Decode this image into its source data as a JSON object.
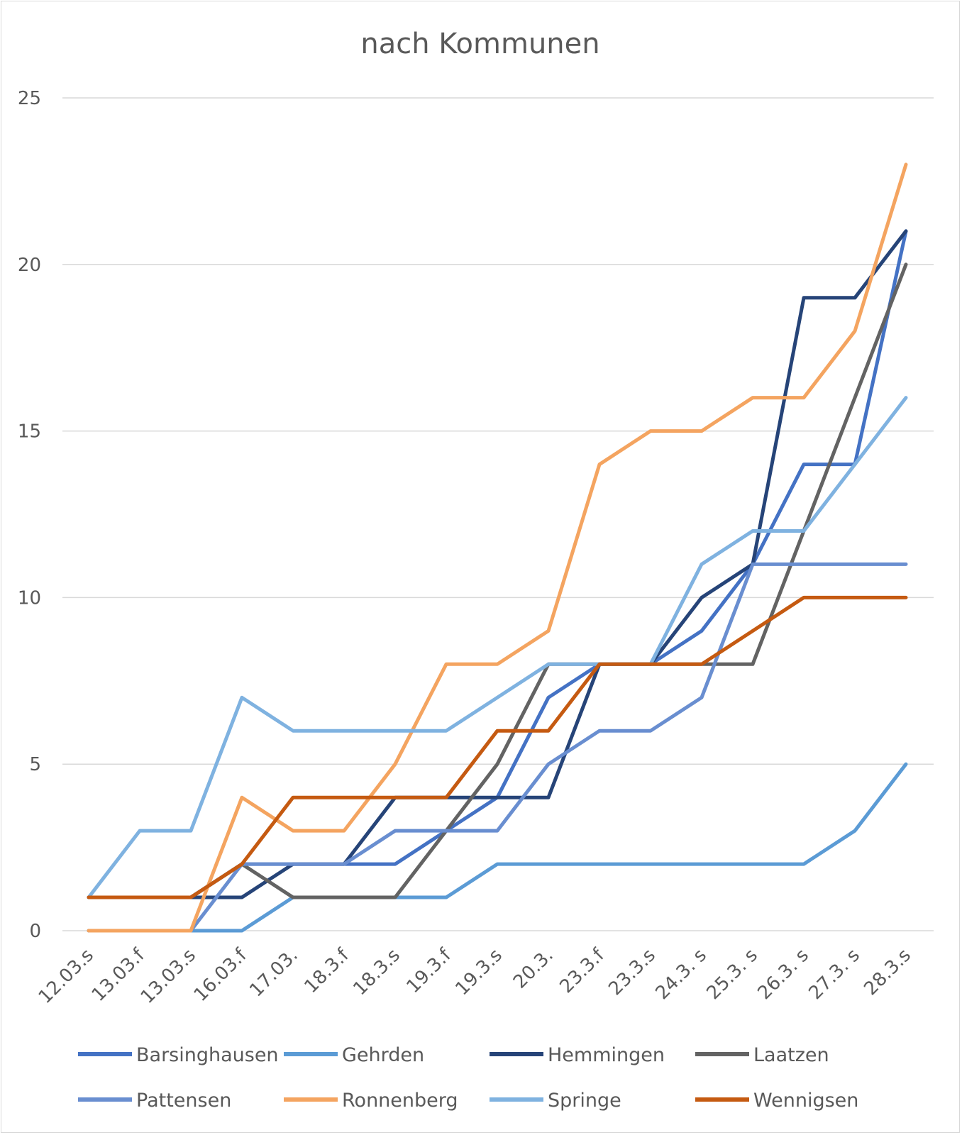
{
  "chart_data": {
    "type": "line",
    "title": "nach Kommunen",
    "xlabel": "",
    "ylabel": "",
    "categories": [
      "12.03.s",
      "13.03.f",
      "13.03.s",
      "16.03.f",
      "17.03.",
      "18.3.f",
      "18.3.s",
      "19.3.f",
      "19.3.s",
      "20.3.",
      "23.3.f",
      "23.3.s",
      "24.3. s",
      "25.3. s",
      "26.3. s",
      "27.3. s",
      "28.3.s"
    ],
    "ylim": [
      0,
      25
    ],
    "yticks": [
      "0",
      "5",
      "10",
      "15",
      "20",
      "25"
    ],
    "grid": true,
    "legend_position": "bottom",
    "series": [
      {
        "name": "Barsinghausen",
        "color": "#4472C4",
        "values": [
          1,
          1,
          1,
          2,
          2,
          2,
          2,
          3,
          4,
          7,
          8,
          8,
          9,
          11,
          14,
          14,
          21
        ]
      },
      {
        "name": "Gehrden",
        "color": "#5B9BD5",
        "values": [
          0,
          0,
          0,
          0,
          1,
          1,
          1,
          1,
          2,
          2,
          2,
          2,
          2,
          2,
          2,
          3,
          5
        ]
      },
      {
        "name": "Hemmingen",
        "color": "#264478",
        "values": [
          1,
          1,
          1,
          1,
          2,
          2,
          4,
          4,
          4,
          4,
          8,
          8,
          10,
          11,
          19,
          19,
          21
        ]
      },
      {
        "name": "Laatzen",
        "color": "#636363",
        "values": [
          1,
          1,
          1,
          2,
          1,
          1,
          1,
          3,
          5,
          8,
          8,
          8,
          8,
          8,
          12,
          16,
          20
        ]
      },
      {
        "name": "Pattensen",
        "color": "#698ED0",
        "values": [
          0,
          0,
          0,
          2,
          2,
          2,
          3,
          3,
          3,
          5,
          6,
          6,
          7,
          11,
          11,
          11,
          11
        ]
      },
      {
        "name": "Ronnenberg",
        "color": "#F4A460",
        "values": [
          0,
          0,
          0,
          4,
          3,
          3,
          5,
          8,
          8,
          9,
          14,
          15,
          15,
          16,
          16,
          18,
          23
        ]
      },
      {
        "name": "Springe",
        "color": "#7FB2E0",
        "values": [
          1,
          3,
          3,
          7,
          6,
          6,
          6,
          6,
          7,
          8,
          8,
          8,
          11,
          12,
          12,
          14,
          16
        ]
      },
      {
        "name": "Wennigsen",
        "color": "#C55A11",
        "values": [
          1,
          1,
          1,
          2,
          4,
          4,
          4,
          4,
          6,
          6,
          8,
          8,
          8,
          9,
          10,
          10,
          10
        ]
      }
    ]
  }
}
